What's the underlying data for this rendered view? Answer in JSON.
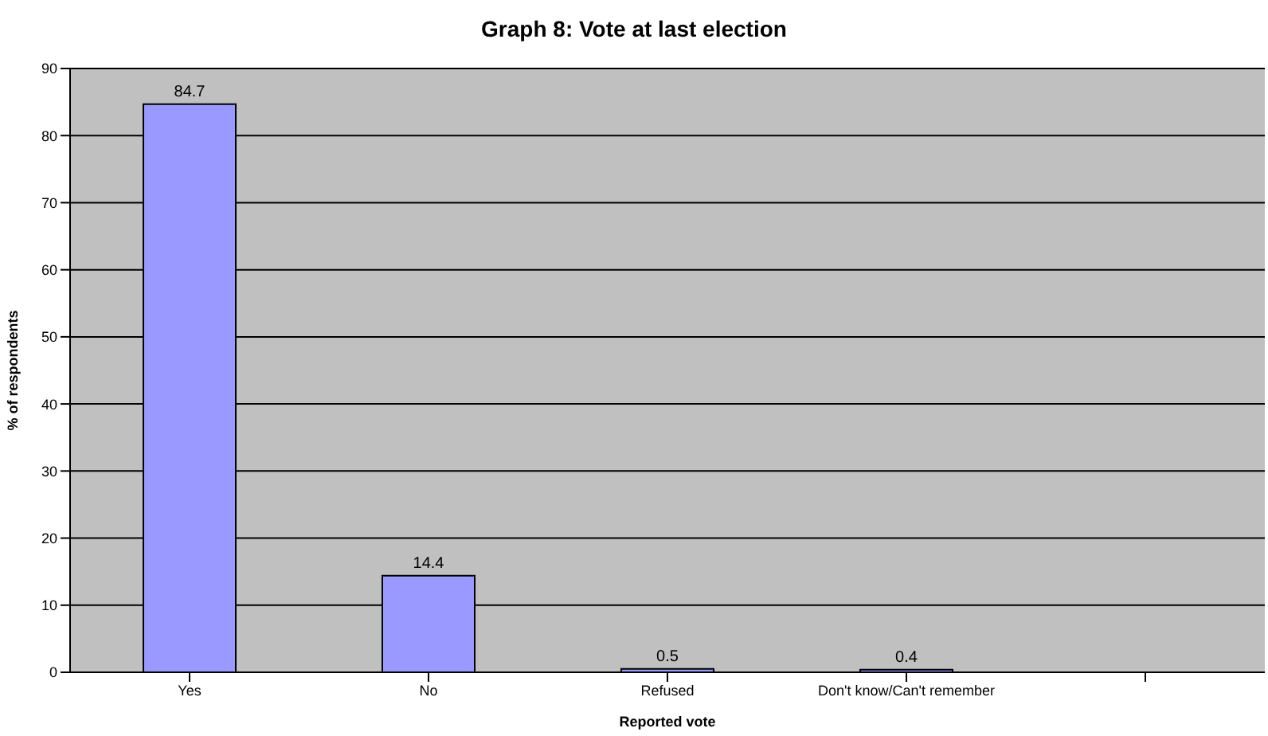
{
  "chart_data": {
    "type": "bar",
    "title": "Graph 8: Vote at last election",
    "xlabel": "Reported vote",
    "ylabel": "% of respondents",
    "categories": [
      "Yes",
      "No",
      "Refused",
      "Don't know/Can't remember",
      null
    ],
    "values": [
      84.7,
      14.4,
      0.5,
      0.4,
      null
    ],
    "color": "#9999ff",
    "ylim": [
      0,
      90
    ],
    "yticks": [
      0,
      10,
      20,
      30,
      40,
      50,
      60,
      70,
      80,
      90
    ],
    "grid": "y",
    "data_labels": true
  }
}
